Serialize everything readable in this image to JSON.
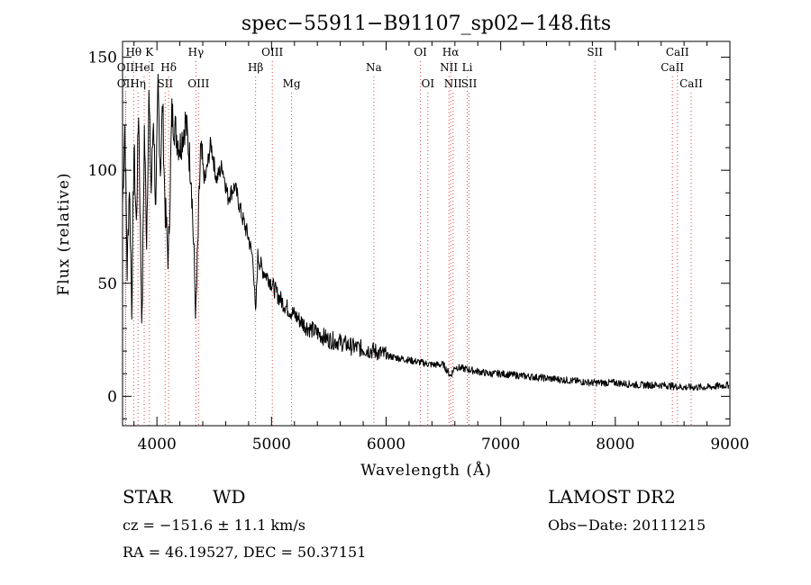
{
  "chart_data": {
    "type": "line",
    "title": "spec−55911−B91107_sp02−148.fits",
    "xlabel": "Wavelength (Å)",
    "ylabel": "Flux (relative)",
    "xlim": [
      3700,
      9000
    ],
    "ylim": [
      -13,
      157
    ],
    "x_ticks": [
      4000,
      5000,
      6000,
      7000,
      8000,
      9000
    ],
    "y_ticks": [
      0,
      50,
      100,
      150
    ],
    "grid": false,
    "series": [
      {
        "x": [
          3700,
          3720,
          3740,
          3760,
          3780,
          3800,
          3820,
          3840,
          3860,
          3870,
          3890,
          3910,
          3930,
          3950,
          3970,
          3990,
          4010,
          4030,
          4050,
          4070,
          4100,
          4130,
          4160,
          4200,
          4250,
          4300,
          4340,
          4380,
          4420,
          4470,
          4520,
          4570,
          4620,
          4680,
          4740,
          4800,
          4840,
          4861,
          4880,
          4920,
          4980,
          5050,
          5120,
          5200,
          5300,
          5400,
          5500,
          5600,
          5700,
          5800,
          5900,
          6000,
          6100,
          6200,
          6300,
          6400,
          6500,
          6562,
          6600,
          6700,
          6800,
          6900,
          7000,
          7200,
          7400,
          7600,
          7800,
          8000,
          8200,
          8400,
          8600,
          8800,
          8990
        ],
        "y": [
          85,
          120,
          55,
          95,
          40,
          110,
          75,
          128,
          60,
          30,
          118,
          70,
          132,
          90,
          125,
          80,
          138,
          100,
          130,
          85,
          60,
          125,
          118,
          110,
          122,
          98,
          35,
          108,
          95,
          112,
          96,
          102,
          88,
          93,
          80,
          70,
          60,
          35,
          62,
          56,
          52,
          45,
          40,
          36,
          31,
          28,
          25,
          24,
          22,
          21,
          20,
          18,
          17,
          16,
          15,
          14,
          14,
          9,
          13,
          12,
          11,
          10,
          10,
          9,
          8,
          7,
          6,
          6,
          5,
          5,
          4,
          4,
          5
        ]
      }
    ],
    "line_markers": [
      {
        "label": "Hθ",
        "x": 3797,
        "row": 1
      },
      {
        "label": "K",
        "x": 3934,
        "row": 1
      },
      {
        "label": "OII",
        "x": 3727,
        "row": 2
      },
      {
        "label": "HeI",
        "x": 3889,
        "row": 2
      },
      {
        "label": "Hδ",
        "x": 4102,
        "row": 2
      },
      {
        "label": "OII",
        "x": 3727,
        "row": 3
      },
      {
        "label": "Hη",
        "x": 3835,
        "row": 3
      },
      {
        "label": "SII",
        "x": 4072,
        "row": 3
      },
      {
        "label": "Hγ",
        "x": 4340,
        "row": 1
      },
      {
        "label": "OIII",
        "x": 4363,
        "row": 3
      },
      {
        "label": "OIII",
        "x": 5007,
        "row": 1
      },
      {
        "label": "Hβ",
        "x": 4861,
        "row": 2
      },
      {
        "label": "Mg",
        "x": 5175,
        "row": 3
      },
      {
        "label": "Na",
        "x": 5893,
        "row": 2
      },
      {
        "label": "OI",
        "x": 6300,
        "row": 1
      },
      {
        "label": "OI",
        "x": 6364,
        "row": 3
      },
      {
        "label": "Hα",
        "x": 6563,
        "row": 1
      },
      {
        "label": "NII",
        "x": 6548,
        "row": 2
      },
      {
        "label": "Li",
        "x": 6708,
        "row": 2
      },
      {
        "label": "NII",
        "x": 6584,
        "row": 3
      },
      {
        "label": "SII",
        "x": 6724,
        "row": 3
      },
      {
        "label": "SII",
        "x": 7822,
        "row": 1
      },
      {
        "label": "CaII",
        "x": 8542,
        "row": 1
      },
      {
        "label": "CaII",
        "x": 8498,
        "row": 2
      },
      {
        "label": "CaII",
        "x": 8662,
        "row": 3
      }
    ]
  },
  "info": {
    "object_class": "STAR",
    "subclass": "WD",
    "survey": "LAMOST DR2",
    "redshift_text": "cz = −151.6 ± 11.1 km/s",
    "obs_date_text": "Obs−Date: 20111215",
    "coords_text": "RA =  46.19527, DEC =  50.37151"
  },
  "colors": {
    "spectrum": "#000000",
    "marker_lines": "#e04040",
    "axes": "#000000"
  }
}
